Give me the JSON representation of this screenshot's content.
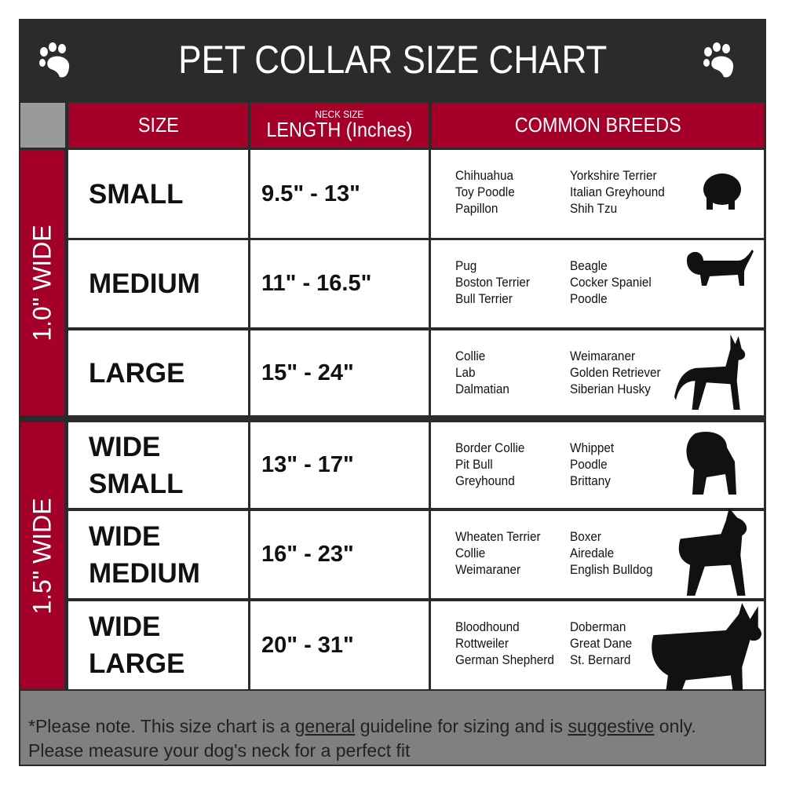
{
  "title": "PET COLLAR SIZE CHART",
  "colors": {
    "dark": "#2b2b2b",
    "accent": "#a50029",
    "footer": "#808080"
  },
  "headers": {
    "size": "SIZE",
    "neck_small": "NECK SIZE",
    "length": "LENGTH (Inches)",
    "breeds": "COMMON BREEDS"
  },
  "groups": [
    "1.0\" WIDE",
    "1.5\" WIDE"
  ],
  "rows": [
    {
      "size": "SMALL",
      "length": "9.5\" - 13\"",
      "breeds1": [
        "Chihuahua",
        "Toy Poodle",
        "Papillon"
      ],
      "breeds2": [
        "Yorkshire Terrier",
        "Italian Greyhound",
        "Shih Tzu"
      ],
      "icon": "small-dog-silhouette-icon"
    },
    {
      "size": "MEDIUM",
      "length": "11\" - 16.5\"",
      "breeds1": [
        "Pug",
        "Boston Terrier",
        "Bull Terrier"
      ],
      "breeds2": [
        "Beagle",
        "Cocker Spaniel",
        "Poodle"
      ],
      "icon": "medium-dog-silhouette-icon"
    },
    {
      "size": "LARGE",
      "length": "15\" - 24\"",
      "breeds1": [
        "Collie",
        "Lab",
        "Dalmatian"
      ],
      "breeds2": [
        "Weimaraner",
        "Golden Retriever",
        "Siberian Husky"
      ],
      "icon": "large-dog-silhouette-icon"
    },
    {
      "size": "WIDE SMALL",
      "length": "13\" - 17\"",
      "breeds1": [
        "Border Collie",
        "Pit Bull",
        "Greyhound"
      ],
      "breeds2": [
        "Whippet",
        "Poodle",
        "Brittany"
      ],
      "icon": "bulldog-silhouette-icon"
    },
    {
      "size": "WIDE MEDIUM",
      "length": "16\" - 23\"",
      "breeds1": [
        "Wheaten Terrier",
        "Collie",
        "Weimaraner"
      ],
      "breeds2": [
        "Boxer",
        "Airedale",
        "English Bulldog"
      ],
      "icon": "pitbull-silhouette-icon"
    },
    {
      "size": "WIDE LARGE",
      "length": "20\" - 31\"",
      "breeds1": [
        "Bloodhound",
        "Rottweiler",
        "German Shepherd"
      ],
      "breeds2": [
        "Doberman",
        "Great Dane",
        "St. Bernard"
      ],
      "icon": "doberman-silhouette-icon"
    }
  ],
  "footer": {
    "p1": "*Please note. This size chart is a ",
    "u1": "general",
    "p2": " guideline for sizing and is ",
    "u2": "suggestive",
    "p3": " only.",
    "line2": "Please measure your dog's neck for a perfect fit"
  }
}
